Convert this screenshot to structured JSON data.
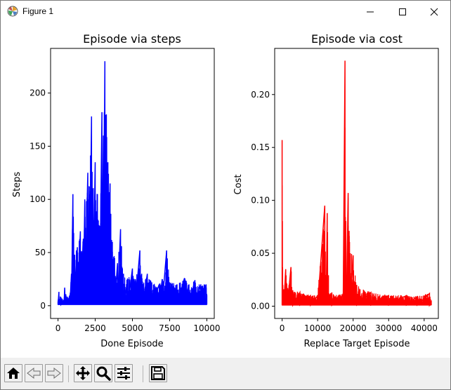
{
  "window": {
    "title": "Figure 1",
    "icons": [
      "matplotlib-app-icon",
      "minimize-icon",
      "maximize-icon",
      "close-icon"
    ]
  },
  "toolbar": {
    "buttons": [
      {
        "name": "home-button",
        "icon": "home-icon"
      },
      {
        "name": "back-button",
        "icon": "back-arrow-icon"
      },
      {
        "name": "forward-button",
        "icon": "forward-arrow-icon"
      },
      {
        "name": "pan-button",
        "icon": "move-icon"
      },
      {
        "name": "zoom-button",
        "icon": "zoom-icon"
      },
      {
        "name": "configure-subplots-button",
        "icon": "sliders-icon"
      },
      {
        "name": "save-button",
        "icon": "floppy-disk-icon"
      }
    ]
  },
  "colors": {
    "steps_line": "#0000ff",
    "cost_line": "#ff0000",
    "toolbar_bg": "#f0f0f0"
  },
  "chart_data": [
    {
      "type": "line",
      "title": "Episode via steps",
      "xlabel": "Done Episode",
      "ylabel": "Steps",
      "xlim": [
        -500,
        10500
      ],
      "ylim": [
        -12,
        242
      ],
      "xticks": [
        0,
        2500,
        5000,
        7500,
        10000
      ],
      "xtick_labels": [
        "0",
        "2500",
        "5000",
        "7500",
        "10000"
      ],
      "yticks": [
        0,
        50,
        100,
        150,
        200
      ],
      "ytick_labels": [
        "0",
        "50",
        "100",
        "150",
        "200"
      ],
      "grid": false,
      "series": [
        {
          "color": "#0000ff",
          "noise_floor": 1,
          "envelope": [
            [
              0,
              4
            ],
            [
              60,
              13
            ],
            [
              200,
              8
            ],
            [
              400,
              5
            ],
            [
              450,
              17
            ],
            [
              600,
              8
            ],
            [
              800,
              10
            ],
            [
              900,
              30
            ],
            [
              1000,
              105
            ],
            [
              1100,
              48
            ],
            [
              1300,
              55
            ],
            [
              1500,
              70
            ],
            [
              1700,
              63
            ],
            [
              1800,
              100
            ],
            [
              2000,
              125
            ],
            [
              2100,
              112
            ],
            [
              2250,
              178
            ],
            [
              2350,
              110
            ],
            [
              2500,
              135
            ],
            [
              2650,
              105
            ],
            [
              2800,
              75
            ],
            [
              2950,
              182
            ],
            [
              3050,
              160
            ],
            [
              3150,
              230
            ],
            [
              3250,
              180
            ],
            [
              3350,
              135
            ],
            [
              3500,
              115
            ],
            [
              3650,
              60
            ],
            [
              3800,
              45
            ],
            [
              4000,
              40
            ],
            [
              4200,
              72
            ],
            [
              4400,
              30
            ],
            [
              4700,
              25
            ],
            [
              5000,
              35
            ],
            [
              5200,
              25
            ],
            [
              5500,
              52
            ],
            [
              5700,
              20
            ],
            [
              6000,
              30
            ],
            [
              6300,
              22
            ],
            [
              6800,
              20
            ],
            [
              7000,
              25
            ],
            [
              7300,
              52
            ],
            [
              7500,
              22
            ],
            [
              8000,
              20
            ],
            [
              8500,
              26
            ],
            [
              8800,
              20
            ],
            [
              9200,
              24
            ],
            [
              9600,
              20
            ],
            [
              9950,
              20
            ],
            [
              10000,
              10
            ]
          ]
        }
      ]
    },
    {
      "type": "line",
      "title": "Episode via cost",
      "xlabel": "Replace Target Episode",
      "ylabel": "Cost",
      "xlim": [
        -2100,
        44000
      ],
      "ylim": [
        -0.0116,
        0.2436
      ],
      "xticks": [
        0,
        10000,
        20000,
        30000,
        40000
      ],
      "xtick_labels": [
        "0",
        "10000",
        "20000",
        "30000",
        "40000"
      ],
      "yticks": [
        0.0,
        0.05,
        0.1,
        0.15,
        0.2
      ],
      "ytick_labels": [
        "0.00",
        "0.05",
        "0.10",
        "0.15",
        "0.20"
      ],
      "grid": false,
      "series": [
        {
          "color": "#ff0000",
          "noise_floor": 0.001,
          "envelope": [
            [
              0,
              0.157
            ],
            [
              200,
              0.02
            ],
            [
              500,
              0.016
            ],
            [
              1000,
              0.035
            ],
            [
              1500,
              0.015
            ],
            [
              2500,
              0.037
            ],
            [
              3000,
              0.015
            ],
            [
              5000,
              0.013
            ],
            [
              8000,
              0.01
            ],
            [
              10000,
              0.01
            ],
            [
              12000,
              0.095
            ],
            [
              12400,
              0.012
            ],
            [
              12700,
              0.088
            ],
            [
              13200,
              0.012
            ],
            [
              14000,
              0.013
            ],
            [
              16000,
              0.01
            ],
            [
              17200,
              0.012
            ],
            [
              17700,
              0.232
            ],
            [
              18100,
              0.015
            ],
            [
              18600,
              0.107
            ],
            [
              19200,
              0.05
            ],
            [
              20000,
              0.048
            ],
            [
              21000,
              0.02
            ],
            [
              25000,
              0.013
            ],
            [
              30000,
              0.01
            ],
            [
              35000,
              0.01
            ],
            [
              38000,
              0.009
            ],
            [
              41500,
              0.012
            ],
            [
              42000,
              0.004
            ]
          ]
        }
      ]
    }
  ]
}
